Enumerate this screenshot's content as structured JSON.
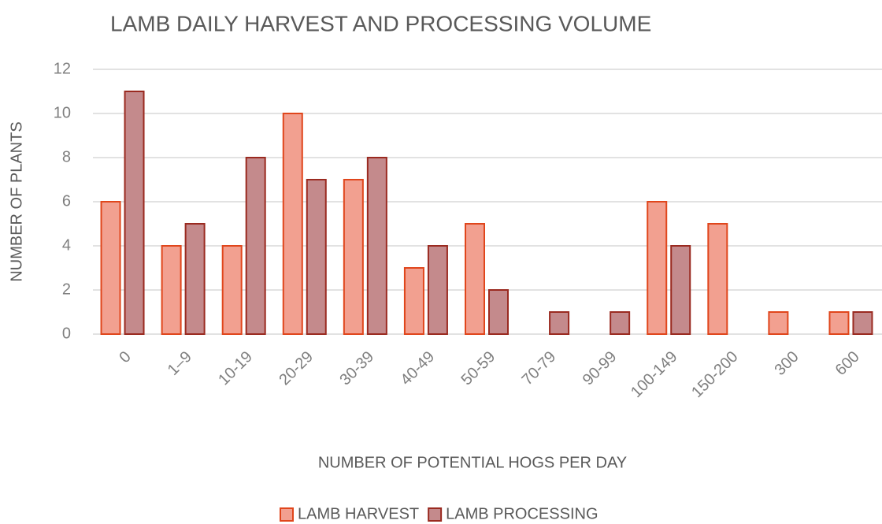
{
  "chart_data": {
    "type": "bar",
    "title": "LAMB DAILY HARVEST AND PROCESSING VOLUME",
    "x_label": "NUMBER OF POTENTIAL HOGS PER DAY",
    "y_label": "NUMBER OF PLANTS",
    "categories": [
      "0",
      "1–9",
      "10-19",
      "20-29",
      "30-39",
      "40-49",
      "50-59",
      "70-79",
      "90-99",
      "100-149",
      "150-200",
      "300",
      "600"
    ],
    "series": [
      {
        "name": "LAMB HARVEST",
        "color": "#f2a090",
        "edge": "#e0461c",
        "values": [
          6,
          4,
          4,
          10,
          7,
          3,
          5,
          0,
          0,
          6,
          5,
          1,
          1
        ]
      },
      {
        "name": "LAMB PROCESSING",
        "color": "#c48a8c",
        "edge": "#9a2a20",
        "values": [
          11,
          5,
          8,
          7,
          8,
          4,
          2,
          1,
          1,
          4,
          0,
          0,
          1
        ]
      }
    ],
    "ylim": [
      0,
      12
    ],
    "yticks": [
      0,
      2,
      4,
      6,
      8,
      10,
      12
    ],
    "grid": true,
    "legend": "bottom"
  }
}
